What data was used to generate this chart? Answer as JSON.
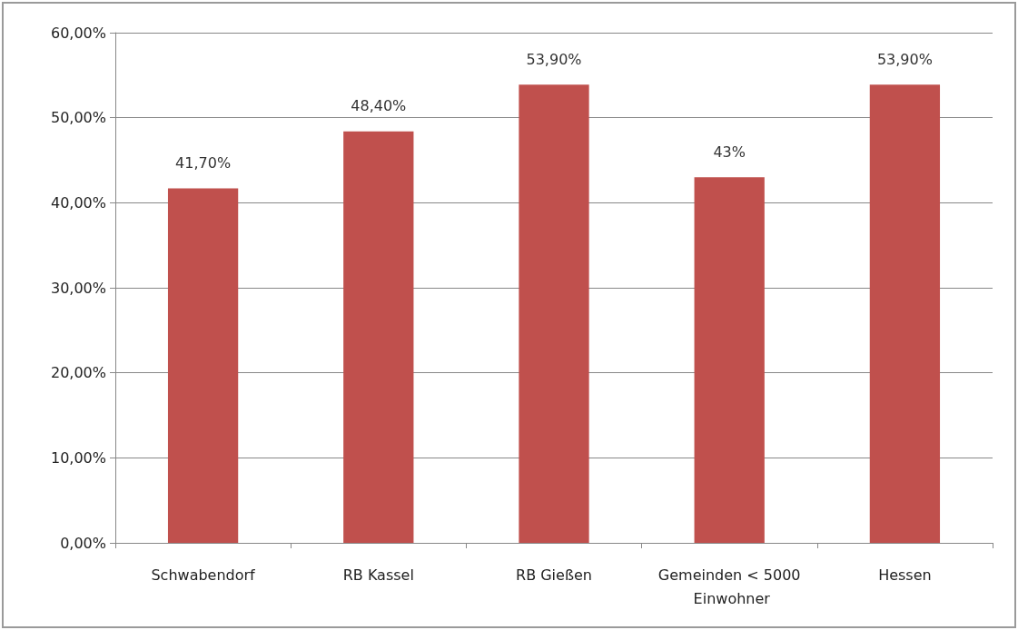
{
  "chart_data": {
    "type": "bar",
    "categories": [
      "Schwabendorf",
      "RB Kassel",
      "RB Gießen",
      "Gemeinden < 5000 Einwohner",
      "Hessen"
    ],
    "values": [
      41.7,
      48.4,
      53.9,
      43,
      53.9
    ],
    "value_labels": [
      "41,70%",
      "48,40%",
      "53,90%",
      "43%",
      "53,90%"
    ],
    "color": "#c0504d",
    "ylim": [
      0,
      60
    ],
    "yticks": [
      {
        "value": 0,
        "label": "0,00%"
      },
      {
        "value": 10,
        "label": "10,00%"
      },
      {
        "value": 20,
        "label": "20,00%"
      },
      {
        "value": 30,
        "label": "30,00%"
      },
      {
        "value": 40,
        "label": "40,00%"
      },
      {
        "value": 50,
        "label": "50,00%"
      },
      {
        "value": 60,
        "label": "60,00%"
      }
    ],
    "grid": "y"
  }
}
